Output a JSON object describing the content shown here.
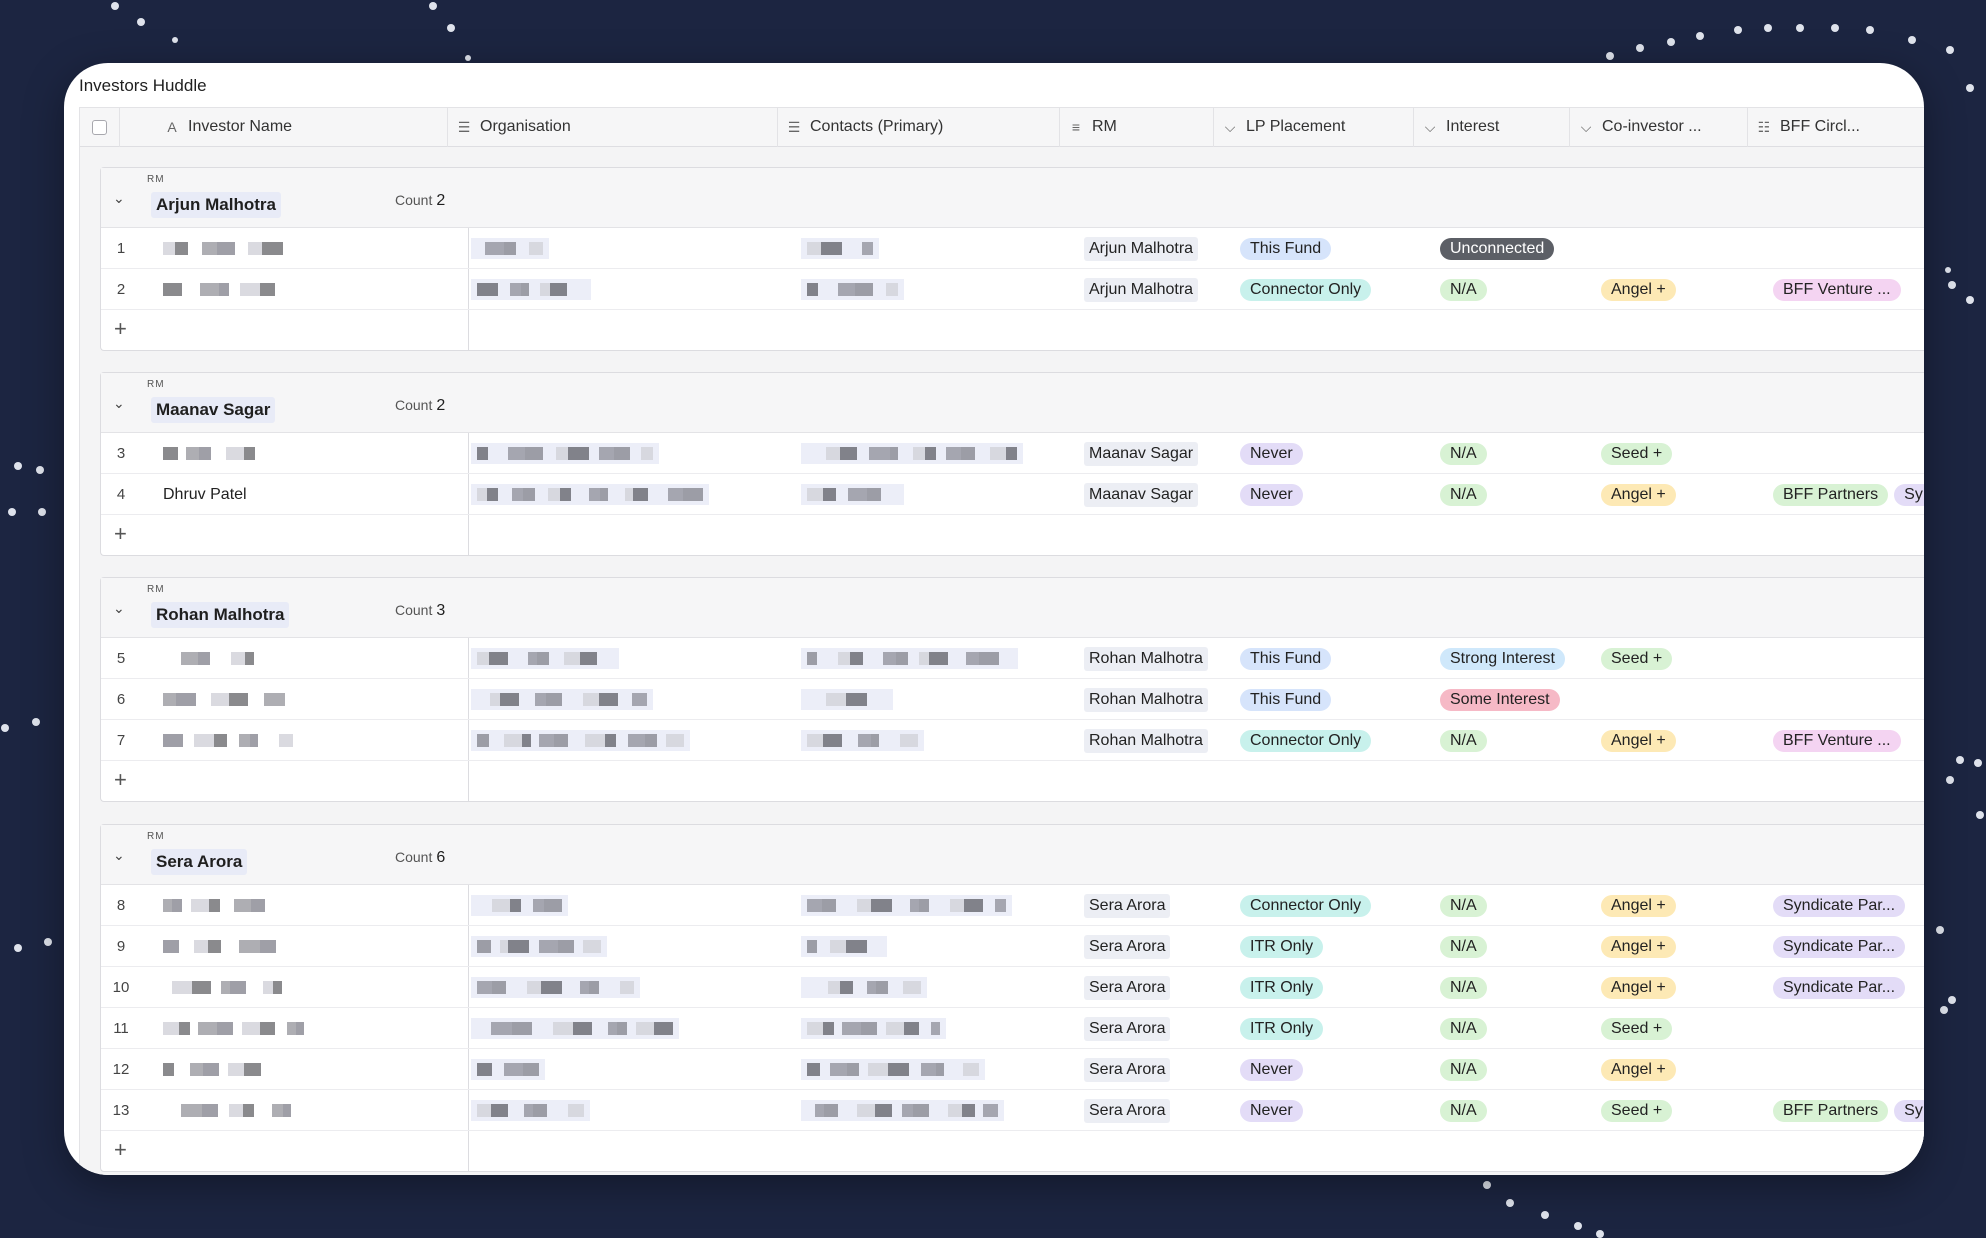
{
  "app": {
    "title": "Investors Huddle"
  },
  "columns": [
    {
      "label": "Investor Name",
      "icon": "text-field-icon"
    },
    {
      "label": "Organisation",
      "icon": "link-field-icon"
    },
    {
      "label": "Contacts (Primary)",
      "icon": "link-field-icon"
    },
    {
      "label": "RM",
      "icon": "lookup-field-icon"
    },
    {
      "label": "LP Placement",
      "icon": "single-select-icon"
    },
    {
      "label": "Interest",
      "icon": "single-select-icon"
    },
    {
      "label": "Co-investor ...",
      "icon": "single-select-icon"
    },
    {
      "label": "BFF Circl...",
      "icon": "multi-select-icon"
    }
  ],
  "group_field_label": "RM",
  "count_label": "Count",
  "colors": {
    "this_fund": "#d6e4fb",
    "connector_only": "#c8f1ec",
    "never": "#e3dcf7",
    "itr_only": "#c8f1ec",
    "unconnected": "#5c5f66",
    "strong_interest": "#cfe8fb",
    "some_interest": "#f6b9c6",
    "na": "#d8f2d4",
    "angel": "#fde9b5",
    "seed": "#d8f2d4",
    "bff_venture": "#f4d4f2",
    "bff_partners": "#d8f2d4",
    "syndicate": "#e3dcf7"
  },
  "groups": [
    {
      "name": "Arjun Malhotra",
      "count": "2",
      "rows": [
        {
          "num": "1",
          "name": "",
          "rm": "Arjun Malhotra",
          "lp": "This Fund",
          "lp_color": "this_fund",
          "interest": "Unconnected",
          "interest_color": "unconnected",
          "interest_dark": true,
          "co": "",
          "bff": []
        },
        {
          "num": "2",
          "name": "",
          "rm": "Arjun Malhotra",
          "lp": "Connector Only",
          "lp_color": "connector_only",
          "interest": "N/A",
          "interest_color": "na",
          "co": "Angel +",
          "co_color": "angel",
          "bff": [
            {
              "label": "BFF Venture ...",
              "color": "bff_venture"
            }
          ]
        }
      ]
    },
    {
      "name": "Maanav Sagar",
      "count": "2",
      "rows": [
        {
          "num": "3",
          "name": "",
          "rm": "Maanav Sagar",
          "lp": "Never",
          "lp_color": "never",
          "interest": "N/A",
          "interest_color": "na",
          "co": "Seed +",
          "co_color": "seed",
          "bff": []
        },
        {
          "num": "4",
          "name": "Dhruv Patel",
          "rm": "Maanav Sagar",
          "lp": "Never",
          "lp_color": "never",
          "interest": "N/A",
          "interest_color": "na",
          "co": "Angel +",
          "co_color": "angel",
          "bff": [
            {
              "label": "BFF Partners",
              "color": "bff_partners"
            },
            {
              "label": "Sy",
              "color": "syndicate"
            }
          ]
        }
      ]
    },
    {
      "name": "Rohan Malhotra",
      "count": "3",
      "rows": [
        {
          "num": "5",
          "name": "",
          "rm": "Rohan Malhotra",
          "lp": "This Fund",
          "lp_color": "this_fund",
          "interest": "Strong Interest",
          "interest_color": "strong_interest",
          "co": "Seed +",
          "co_color": "seed",
          "bff": []
        },
        {
          "num": "6",
          "name": "",
          "rm": "Rohan Malhotra",
          "lp": "This Fund",
          "lp_color": "this_fund",
          "interest": "Some Interest",
          "interest_color": "some_interest",
          "co": "",
          "bff": []
        },
        {
          "num": "7",
          "name": "",
          "rm": "Rohan Malhotra",
          "lp": "Connector Only",
          "lp_color": "connector_only",
          "interest": "N/A",
          "interest_color": "na",
          "co": "Angel +",
          "co_color": "angel",
          "bff": [
            {
              "label": "BFF Venture ...",
              "color": "bff_venture"
            }
          ]
        }
      ]
    },
    {
      "name": "Sera Arora",
      "count": "6",
      "rows": [
        {
          "num": "8",
          "name": "",
          "rm": "Sera Arora",
          "lp": "Connector Only",
          "lp_color": "connector_only",
          "interest": "N/A",
          "interest_color": "na",
          "co": "Angel +",
          "co_color": "angel",
          "bff": [
            {
              "label": "Syndicate Par...",
              "color": "syndicate"
            }
          ]
        },
        {
          "num": "9",
          "name": "",
          "rm": "Sera Arora",
          "lp": "ITR Only",
          "lp_color": "itr_only",
          "interest": "N/A",
          "interest_color": "na",
          "co": "Angel +",
          "co_color": "angel",
          "bff": [
            {
              "label": "Syndicate Par...",
              "color": "syndicate"
            }
          ]
        },
        {
          "num": "10",
          "name": "",
          "rm": "Sera Arora",
          "lp": "ITR Only",
          "lp_color": "itr_only",
          "interest": "N/A",
          "interest_color": "na",
          "co": "Angel +",
          "co_color": "angel",
          "bff": [
            {
              "label": "Syndicate Par...",
              "color": "syndicate"
            }
          ]
        },
        {
          "num": "11",
          "name": "",
          "rm": "Sera Arora",
          "lp": "ITR Only",
          "lp_color": "itr_only",
          "interest": "N/A",
          "interest_color": "na",
          "co": "Seed +",
          "co_color": "seed",
          "bff": []
        },
        {
          "num": "12",
          "name": "",
          "rm": "Sera Arora",
          "lp": "Never",
          "lp_color": "never",
          "interest": "N/A",
          "interest_color": "na",
          "co": "Angel +",
          "co_color": "angel",
          "bff": []
        },
        {
          "num": "13",
          "name": "",
          "rm": "Sera Arora",
          "lp": "Never",
          "lp_color": "never",
          "interest": "N/A",
          "interest_color": "na",
          "co": "Seed +",
          "co_color": "seed",
          "bff": [
            {
              "label": "BFF Partners",
              "color": "bff_partners"
            },
            {
              "label": "Sy",
              "color": "syndicate"
            }
          ]
        }
      ]
    }
  ]
}
